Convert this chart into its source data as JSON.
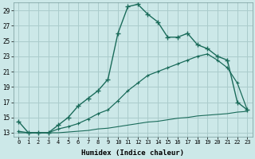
{
  "title": "",
  "xlabel": "Humidex (Indice chaleur)",
  "bg_color": "#cce8e8",
  "grid_color": "#aacccc",
  "line_color": "#1a6b5a",
  "xlim": [
    -0.5,
    23.5
  ],
  "ylim": [
    12.5,
    30.0
  ],
  "xticks": [
    0,
    1,
    2,
    3,
    4,
    5,
    6,
    7,
    8,
    9,
    10,
    11,
    12,
    13,
    14,
    15,
    16,
    17,
    18,
    19,
    20,
    21,
    22,
    23
  ],
  "yticks": [
    13,
    15,
    17,
    19,
    21,
    23,
    25,
    27,
    29
  ],
  "line1_x": [
    0,
    1,
    2,
    3,
    4,
    5,
    6,
    7,
    8,
    9,
    10,
    11,
    12,
    13,
    14,
    15,
    16,
    17,
    18,
    19,
    20,
    21,
    22,
    23
  ],
  "line1_y": [
    14.5,
    13.0,
    13.0,
    13.0,
    14.0,
    15.0,
    16.5,
    17.5,
    18.5,
    20.0,
    26.0,
    29.5,
    29.8,
    28.5,
    27.5,
    25.5,
    25.5,
    26.0,
    24.5,
    24.0,
    23.0,
    22.5,
    17.0,
    16.0
  ],
  "line2_x": [
    0,
    1,
    2,
    3,
    4,
    5,
    6,
    7,
    8,
    9,
    10,
    11,
    12,
    13,
    14,
    15,
    16,
    17,
    18,
    19,
    20,
    21,
    22,
    23
  ],
  "line2_y": [
    13.2,
    13.0,
    13.0,
    13.0,
    13.5,
    13.8,
    14.2,
    14.8,
    15.5,
    16.0,
    17.2,
    18.5,
    19.5,
    20.5,
    21.0,
    21.5,
    22.0,
    22.5,
    23.0,
    23.3,
    22.5,
    21.5,
    19.5,
    16.0
  ],
  "line3_x": [
    0,
    1,
    2,
    3,
    4,
    5,
    6,
    7,
    8,
    9,
    10,
    11,
    12,
    13,
    14,
    15,
    16,
    17,
    18,
    19,
    20,
    21,
    22,
    23
  ],
  "line3_y": [
    13.0,
    13.0,
    13.0,
    13.0,
    13.0,
    13.1,
    13.2,
    13.3,
    13.5,
    13.6,
    13.8,
    14.0,
    14.2,
    14.4,
    14.5,
    14.7,
    14.9,
    15.0,
    15.2,
    15.3,
    15.4,
    15.5,
    15.7,
    15.8
  ]
}
